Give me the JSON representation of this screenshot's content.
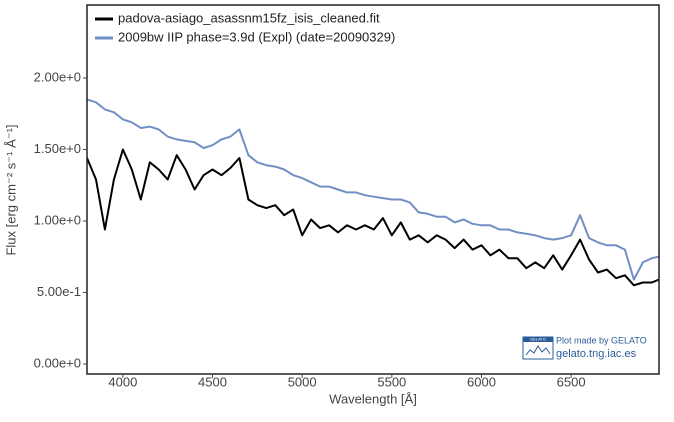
{
  "chart_data": {
    "type": "line",
    "xlabel": "Wavelength [Å]",
    "ylabel": "Flux [erg cm⁻² s⁻¹ Å⁻¹]",
    "xlim": [
      3800,
      6990
    ],
    "ylim": [
      -0.07,
      2.51
    ],
    "xticks": [
      4000,
      4500,
      5000,
      5500,
      6000,
      6500
    ],
    "yticks": [
      {
        "value": 0,
        "label": "0.00e+0"
      },
      {
        "value": 0.5,
        "label": "5.00e-1"
      },
      {
        "value": 1,
        "label": "1.00e+0"
      },
      {
        "value": 1.5,
        "label": "1.50e+0"
      },
      {
        "value": 2,
        "label": "2.00e+0"
      }
    ],
    "legend": "top-left",
    "x": [
      3800,
      3850,
      3900,
      3950,
      4000,
      4050,
      4100,
      4150,
      4200,
      4250,
      4300,
      4350,
      4400,
      4450,
      4500,
      4550,
      4600,
      4650,
      4700,
      4750,
      4800,
      4850,
      4900,
      4950,
      5000,
      5050,
      5100,
      5150,
      5200,
      5250,
      5300,
      5350,
      5400,
      5450,
      5500,
      5550,
      5600,
      5650,
      5700,
      5750,
      5800,
      5850,
      5900,
      5950,
      6000,
      6050,
      6100,
      6150,
      6200,
      6250,
      6300,
      6350,
      6400,
      6450,
      6500,
      6550,
      6600,
      6650,
      6700,
      6750,
      6800,
      6850,
      6900,
      6950,
      6990
    ],
    "series": [
      {
        "name": "padova-asiago_asassnm15fz_isis_cleaned.fit",
        "color": "#000000",
        "values": [
          1.44,
          1.29,
          0.94,
          1.29,
          1.5,
          1.36,
          1.15,
          1.41,
          1.36,
          1.29,
          1.46,
          1.36,
          1.22,
          1.32,
          1.36,
          1.32,
          1.37,
          1.44,
          1.15,
          1.11,
          1.09,
          1.11,
          1.04,
          1.08,
          0.9,
          1.01,
          0.95,
          0.97,
          0.92,
          0.97,
          0.94,
          0.97,
          0.94,
          1.02,
          0.9,
          0.99,
          0.87,
          0.9,
          0.85,
          0.9,
          0.87,
          0.81,
          0.87,
          0.8,
          0.83,
          0.76,
          0.8,
          0.74,
          0.74,
          0.67,
          0.71,
          0.67,
          0.76,
          0.66,
          0.76,
          0.87,
          0.73,
          0.64,
          0.66,
          0.6,
          0.62,
          0.55,
          0.57,
          0.57,
          0.59
        ]
      },
      {
        "name": "2009bw  IIP  phase=3.9d (Expl)  (date=20090329)",
        "color": "#7090c4",
        "values": [
          1.85,
          1.83,
          1.78,
          1.76,
          1.71,
          1.69,
          1.65,
          1.66,
          1.64,
          1.59,
          1.57,
          1.56,
          1.55,
          1.51,
          1.53,
          1.57,
          1.59,
          1.64,
          1.46,
          1.41,
          1.39,
          1.38,
          1.36,
          1.32,
          1.3,
          1.27,
          1.24,
          1.24,
          1.22,
          1.2,
          1.2,
          1.18,
          1.17,
          1.16,
          1.15,
          1.15,
          1.13,
          1.06,
          1.05,
          1.03,
          1.03,
          0.99,
          1.01,
          0.98,
          0.97,
          0.97,
          0.94,
          0.94,
          0.92,
          0.91,
          0.9,
          0.88,
          0.87,
          0.88,
          0.9,
          1.04,
          0.88,
          0.85,
          0.83,
          0.83,
          0.8,
          0.59,
          0.71,
          0.74,
          0.75
        ]
      }
    ],
    "watermark": {
      "logo": "GELATO",
      "line1": "Plot made by GELATO",
      "line2": "gelato.tng.iac.es"
    }
  }
}
